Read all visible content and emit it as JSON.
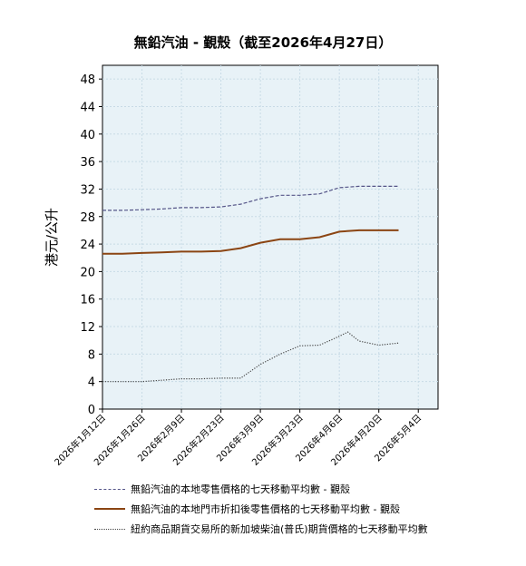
{
  "chart_data": {
    "type": "line",
    "title": "無鉛汽油 - 覲殼（截至2026年4月27日）",
    "ylabel": "港元/公升",
    "xlabel": "",
    "ylim": [
      0,
      50
    ],
    "yticks": [
      0,
      4,
      8,
      12,
      16,
      20,
      24,
      28,
      32,
      36,
      40,
      44,
      48
    ],
    "xlim": [
      "2026-01-12",
      "2026-05-11"
    ],
    "xtick_labels": [
      "2026年1月12日",
      "2026年1月26日",
      "2026年2月9日",
      "2026年2月23日",
      "2026年3月9日",
      "2026年3月23日",
      "2026年4月6日",
      "2026年4月20日",
      "2026年5月4日"
    ],
    "grid": true,
    "legend_position": "bottom",
    "colors": {
      "plot_bg": "#e8f2f7",
      "grid": "#c8dbe6"
    },
    "series": [
      {
        "name": "無鉛汽油的本地零售價格的七天移動平均數 - 覲殼",
        "color": "#555588",
        "style": "dashed",
        "points": [
          [
            "2026-01-12",
            28.9
          ],
          [
            "2026-01-19",
            28.9
          ],
          [
            "2026-01-26",
            29.0
          ],
          [
            "2026-02-02",
            29.1
          ],
          [
            "2026-02-09",
            29.3
          ],
          [
            "2026-02-16",
            29.3
          ],
          [
            "2026-02-23",
            29.4
          ],
          [
            "2026-03-02",
            29.8
          ],
          [
            "2026-03-09",
            30.6
          ],
          [
            "2026-03-16",
            31.1
          ],
          [
            "2026-03-23",
            31.1
          ],
          [
            "2026-03-30",
            31.3
          ],
          [
            "2026-04-06",
            32.2
          ],
          [
            "2026-04-13",
            32.4
          ],
          [
            "2026-04-20",
            32.4
          ],
          [
            "2026-04-27",
            32.4
          ]
        ]
      },
      {
        "name": "無鉛汽油的本地門市折扣後零售價格的七天移動平均數 - 覲殼",
        "color": "#8b4513",
        "style": "solid",
        "points": [
          [
            "2026-01-12",
            22.6
          ],
          [
            "2026-01-19",
            22.6
          ],
          [
            "2026-01-26",
            22.7
          ],
          [
            "2026-02-02",
            22.8
          ],
          [
            "2026-02-09",
            22.9
          ],
          [
            "2026-02-16",
            22.9
          ],
          [
            "2026-02-23",
            23.0
          ],
          [
            "2026-03-02",
            23.4
          ],
          [
            "2026-03-09",
            24.2
          ],
          [
            "2026-03-16",
            24.7
          ],
          [
            "2026-03-23",
            24.7
          ],
          [
            "2026-03-30",
            25.0
          ],
          [
            "2026-04-06",
            25.8
          ],
          [
            "2026-04-13",
            26.0
          ],
          [
            "2026-04-20",
            26.0
          ],
          [
            "2026-04-27",
            26.0
          ]
        ]
      },
      {
        "name": "紐約商品期貨交易所的新加坡柴油(普氏)期貨價格的七天移動平均數",
        "color": "#444444",
        "style": "dotted",
        "points": [
          [
            "2026-01-12",
            4.0
          ],
          [
            "2026-01-19",
            4.0
          ],
          [
            "2026-01-26",
            4.0
          ],
          [
            "2026-02-02",
            4.2
          ],
          [
            "2026-02-09",
            4.4
          ],
          [
            "2026-02-16",
            4.4
          ],
          [
            "2026-02-23",
            4.5
          ],
          [
            "2026-03-02",
            4.5
          ],
          [
            "2026-03-09",
            6.5
          ],
          [
            "2026-03-16",
            8.0
          ],
          [
            "2026-03-23",
            9.2
          ],
          [
            "2026-03-30",
            9.3
          ],
          [
            "2026-04-06",
            10.6
          ],
          [
            "2026-04-09",
            11.2
          ],
          [
            "2026-04-13",
            9.9
          ],
          [
            "2026-04-20",
            9.3
          ],
          [
            "2026-04-27",
            9.6
          ]
        ]
      }
    ]
  }
}
